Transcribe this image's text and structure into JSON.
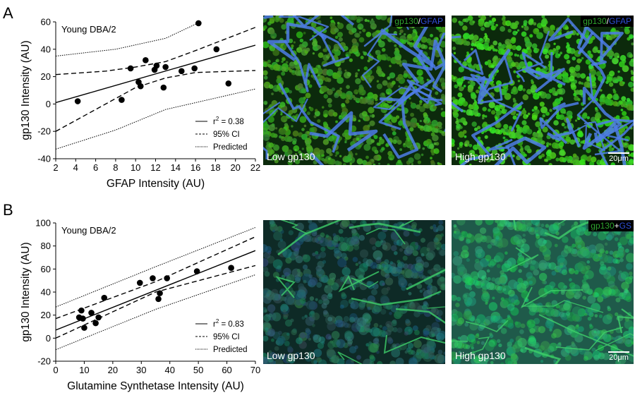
{
  "panels": {
    "a": {
      "letter": "A"
    },
    "b": {
      "letter": "B"
    }
  },
  "micrographs": {
    "a_low": {
      "label": "Low gp130"
    },
    "a_high": {
      "label": "High gp130",
      "scale": "20μm",
      "stain": {
        "part1": "gp130",
        "sep": "/",
        "part2": "GFAP"
      }
    },
    "a_low_stain": {
      "part1": "gp130",
      "sep": "/",
      "part2": "GFAP"
    },
    "b_low": {
      "label": "Low gp130"
    },
    "b_high": {
      "label": "High gp130",
      "scale": "20μm",
      "stain": {
        "part1": "gp130",
        "sep": "+",
        "part2": "GS"
      }
    }
  },
  "colors": {
    "green": "#2fa52f",
    "blue": "#2b5bd8",
    "white": "#ffffff"
  },
  "chart_data": [
    {
      "type": "scatter",
      "annotation": "Young DBA/2",
      "xlabel": "GFAP Intensity (AU)",
      "ylabel": "gp130 Intensity (AU)",
      "xlim": [
        2,
        22
      ],
      "ylim": [
        -40,
        60
      ],
      "xticks": [
        "2",
        "4",
        "6",
        "8",
        "10",
        "12",
        "14",
        "16",
        "18",
        "20",
        "22"
      ],
      "yticks": [
        "60",
        "40",
        "20",
        "0",
        "-20",
        "-40"
      ],
      "points": [
        [
          4.2,
          2
        ],
        [
          8.6,
          3
        ],
        [
          9.5,
          26
        ],
        [
          10.3,
          16
        ],
        [
          10.5,
          13
        ],
        [
          11,
          32
        ],
        [
          11.9,
          25
        ],
        [
          12.1,
          28
        ],
        [
          12.8,
          12
        ],
        [
          13,
          27
        ],
        [
          14.6,
          24
        ],
        [
          15.9,
          26
        ],
        [
          16.3,
          59
        ],
        [
          18.1,
          40
        ],
        [
          19.3,
          15
        ]
      ],
      "fit": {
        "line": [
          [
            2,
            1
          ],
          [
            22,
            43
          ]
        ],
        "ci_upper": [
          [
            2,
            21.5
          ],
          [
            7,
            24
          ],
          [
            10,
            27
          ],
          [
            13,
            31
          ],
          [
            16,
            39
          ],
          [
            22,
            56
          ]
        ],
        "ci_lower": [
          [
            2,
            -20
          ],
          [
            7,
            0
          ],
          [
            10,
            12
          ],
          [
            13,
            19
          ],
          [
            16,
            23
          ],
          [
            22,
            24.5
          ]
        ],
        "pi_upper": [
          [
            2,
            35
          ],
          [
            8,
            40
          ],
          [
            13,
            48
          ],
          [
            16.5,
            60
          ]
        ],
        "pi_lower": [
          [
            2,
            -33
          ],
          [
            8,
            -19
          ],
          [
            13,
            -4
          ],
          [
            22,
            11
          ]
        ]
      },
      "legend": {
        "r2_prefix": "r",
        "r2_sup": "2",
        "r2_value": " = 0.38",
        "ci": "95% CI",
        "predicted": "Predicted"
      }
    },
    {
      "type": "scatter",
      "annotation": "Young DBA/2",
      "xlabel": "Glutamine Synthetase Intensity (AU)",
      "ylabel": "gp130 Intensity (AU)",
      "xlim": [
        0,
        70
      ],
      "ylim": [
        -20,
        100
      ],
      "xticks": [
        "0",
        "10",
        "20",
        "30",
        "40",
        "50",
        "60",
        "70"
      ],
      "yticks": [
        "100",
        "80",
        "60",
        "40",
        "20",
        "0",
        "-20"
      ],
      "points": [
        [
          8.2,
          18
        ],
        [
          9,
          24
        ],
        [
          9.5,
          17
        ],
        [
          10,
          9
        ],
        [
          12.5,
          22
        ],
        [
          14,
          13
        ],
        [
          15,
          18
        ],
        [
          17,
          35
        ],
        [
          29.5,
          48
        ],
        [
          34,
          52
        ],
        [
          36,
          34
        ],
        [
          36.5,
          39
        ],
        [
          39,
          52
        ],
        [
          49.5,
          58
        ],
        [
          61.5,
          61
        ]
      ],
      "fit": {
        "line": [
          [
            0,
            7
          ],
          [
            70,
            76
          ]
        ],
        "ci_upper": [
          [
            0,
            17
          ],
          [
            35,
            49
          ],
          [
            70,
            88
          ]
        ],
        "ci_lower": [
          [
            0,
            0
          ],
          [
            35,
            40
          ],
          [
            70,
            63
          ]
        ],
        "pi_upper": [
          [
            0,
            27
          ],
          [
            35,
            62
          ],
          [
            70,
            96
          ]
        ],
        "pi_lower": [
          [
            0,
            -10
          ],
          [
            35,
            25
          ],
          [
            70,
            55
          ]
        ]
      },
      "legend": {
        "r2_prefix": "r",
        "r2_sup": "2",
        "r2_value": " = 0.83",
        "ci": "95% CI",
        "predicted": "Predicted"
      }
    }
  ]
}
